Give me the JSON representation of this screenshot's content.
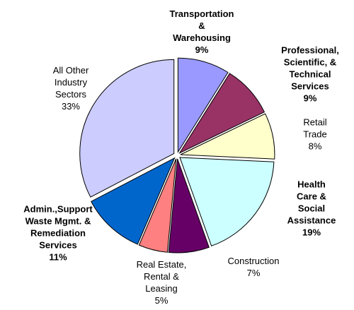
{
  "chart_data": {
    "type": "pie",
    "categories": [
      "Transportation\n&\nWarehousing",
      "Professional,\nScientific, &\nTechnical\nServices",
      "Retail Trade",
      "Health Care &\nSocial\nAssistance",
      "Construction",
      "Real Estate,\nRental &\nLeasing",
      "Admin.,Support\nWaste Mgmt. &\nRemediation\nServices",
      "All Other\nIndustry\nSectors"
    ],
    "values": [
      9,
      9,
      8,
      19,
      7,
      5,
      11,
      33
    ],
    "value_labels": [
      "9%",
      "9%",
      "8%",
      "19%",
      "7%",
      "5%",
      "11%",
      "33%"
    ],
    "colors": [
      "#9999ff",
      "#993366",
      "#ffffcc",
      "#ccffff",
      "#660066",
      "#ff8080",
      "#0066cc",
      "#ccccff"
    ]
  }
}
